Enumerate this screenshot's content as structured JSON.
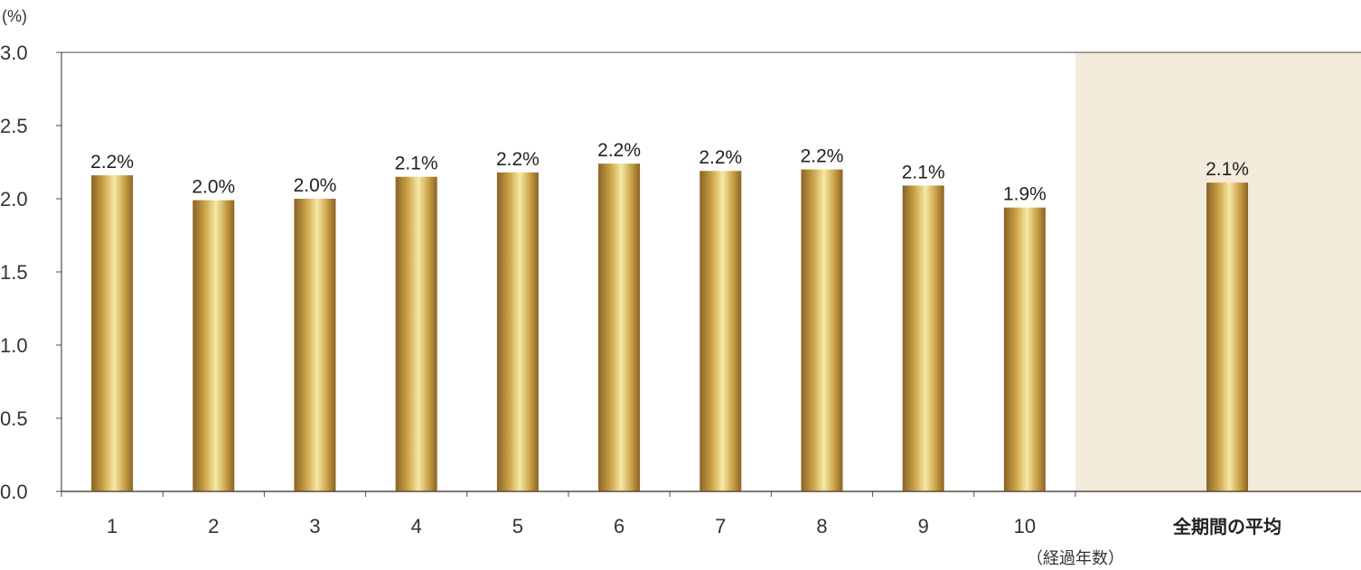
{
  "chart_data": {
    "type": "bar",
    "title": "",
    "ylabel": "(%)",
    "xlabel": "（経過年数）",
    "ylim": [
      0,
      3.0
    ],
    "yticks": [
      "0.0",
      "0.5",
      "1.0",
      "1.5",
      "2.0",
      "2.5",
      "3.0"
    ],
    "grid": false,
    "categories": [
      "1",
      "2",
      "3",
      "4",
      "5",
      "6",
      "7",
      "8",
      "9",
      "10",
      "全期間の平均"
    ],
    "values": [
      2.16,
      1.99,
      2.0,
      2.15,
      2.18,
      2.24,
      2.19,
      2.2,
      2.09,
      1.94,
      2.11
    ],
    "data_labels": [
      "2.2%",
      "2.0%",
      "2.0%",
      "2.1%",
      "2.2%",
      "2.2%",
      "2.2%",
      "2.2%",
      "2.1%",
      "1.9%",
      "2.1%"
    ],
    "colors": {
      "bar_dark": "#8a6326",
      "bar_mid": "#c9a045",
      "bar_light": "#f6e9a6",
      "highlight_bg": "#f2eadb",
      "axis": "#5a4a3a"
    }
  }
}
